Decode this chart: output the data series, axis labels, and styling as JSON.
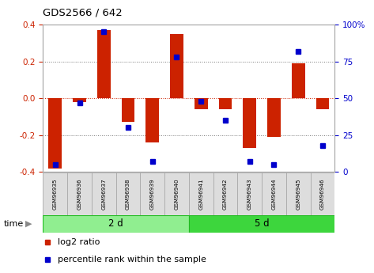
{
  "title": "GDS2566 / 642",
  "samples": [
    "GSM96935",
    "GSM96936",
    "GSM96937",
    "GSM96938",
    "GSM96939",
    "GSM96940",
    "GSM96941",
    "GSM96942",
    "GSM96943",
    "GSM96944",
    "GSM96945",
    "GSM96946"
  ],
  "log2_ratio": [
    -0.38,
    -0.02,
    0.37,
    -0.13,
    -0.24,
    0.35,
    -0.06,
    -0.06,
    -0.27,
    -0.21,
    0.19,
    -0.06
  ],
  "percentile_rank": [
    5,
    47,
    95,
    30,
    7,
    78,
    48,
    35,
    7,
    5,
    82,
    18
  ],
  "groups": [
    {
      "label": "2 d",
      "start": 0,
      "end": 6,
      "color": "#90EE90"
    },
    {
      "label": "5 d",
      "start": 6,
      "end": 12,
      "color": "#3DD63D"
    }
  ],
  "bar_color": "#CC2200",
  "dot_color": "#0000CC",
  "ylim_left": [
    -0.4,
    0.4
  ],
  "ylim_right": [
    0,
    100
  ],
  "yticks_left": [
    -0.4,
    -0.2,
    0.0,
    0.2,
    0.4
  ],
  "yticks_right": [
    0,
    25,
    50,
    75,
    100
  ],
  "ytick_labels_right": [
    "0",
    "25",
    "50",
    "75",
    "100%"
  ],
  "background_color": "#ffffff",
  "plot_bg_color": "#ffffff",
  "time_label": "time",
  "legend_items": [
    {
      "label": "log2 ratio",
      "color": "#CC2200"
    },
    {
      "label": "percentile rank within the sample",
      "color": "#0000CC"
    }
  ]
}
